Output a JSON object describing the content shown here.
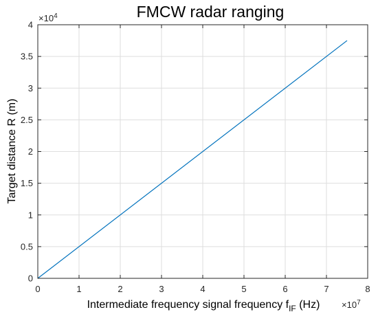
{
  "chart_data": {
    "type": "line",
    "title": "FMCW radar ranging",
    "xlabel": {
      "prefix": "Intermediate frequency signal frequency f",
      "subscript": "IF",
      "suffix": " (Hz)"
    },
    "ylabel": "Target distance R (m)",
    "x_multiplier": {
      "base": "×10",
      "exponent": "7"
    },
    "y_multiplier": {
      "base": "×10",
      "exponent": "4"
    },
    "xlim": [
      0,
      80000000
    ],
    "ylim": [
      0,
      40000
    ],
    "x_ticks": [
      0,
      10000000,
      20000000,
      30000000,
      40000000,
      50000000,
      60000000,
      70000000,
      80000000
    ],
    "x_tick_labels": [
      "0",
      "1",
      "2",
      "3",
      "4",
      "5",
      "6",
      "7",
      "8"
    ],
    "y_ticks": [
      0,
      5000,
      10000,
      15000,
      20000,
      25000,
      30000,
      35000,
      40000
    ],
    "y_tick_labels": [
      "0",
      "0.5",
      "1",
      "1.5",
      "2",
      "2.5",
      "3",
      "3.5",
      "4"
    ],
    "grid": true,
    "series": [
      {
        "color": "#0072bd",
        "x": [
          0,
          75000000
        ],
        "y": [
          0,
          37500
        ]
      }
    ]
  }
}
